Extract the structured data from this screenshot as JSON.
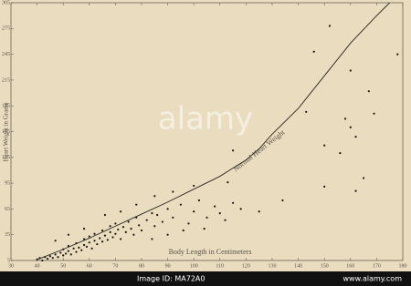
{
  "chart_data": {
    "type": "scatter",
    "y_label": "Heart Weight in Grams",
    "x_label": "Body Length in Centimeters",
    "annotation": "Normal Heart Weight",
    "xlim": [
      30,
      180
    ],
    "xticks": [
      30,
      40,
      50,
      60,
      70,
      80,
      90,
      100,
      110,
      120,
      130,
      140,
      150,
      160,
      170,
      180
    ],
    "ylim": [
      5,
      305
    ],
    "yticks": [
      5,
      35,
      65,
      95,
      125,
      155,
      185,
      215,
      245,
      275,
      305
    ],
    "series": [
      {
        "type": "scatter",
        "color": "#1a1712",
        "x": [
          40,
          41,
          42,
          43,
          44,
          45,
          46,
          47,
          48,
          49,
          50,
          50,
          51,
          52,
          52,
          53,
          54,
          55,
          55,
          56,
          57,
          58,
          58,
          59,
          60,
          60,
          61,
          62,
          62,
          63,
          64,
          65,
          65,
          66,
          67,
          68,
          68,
          69,
          70,
          70,
          71,
          72,
          73,
          74,
          75,
          76,
          77,
          78,
          79,
          80,
          82,
          84,
          85,
          86,
          88,
          90,
          92,
          95,
          98,
          100,
          102,
          105,
          108,
          110,
          112,
          115,
          118,
          125,
          47,
          52,
          58,
          66,
          72,
          78,
          85,
          92,
          100,
          84,
          90,
          96,
          104,
          113,
          115,
          143,
          146,
          150,
          150,
          152,
          158,
          160,
          162,
          162,
          165,
          167,
          169,
          178,
          134,
          156,
          160
        ],
        "values": [
          6,
          8,
          5,
          9,
          7,
          10,
          8,
          12,
          9,
          14,
          11,
          18,
          13,
          16,
          22,
          12,
          19,
          15,
          25,
          20,
          17,
          23,
          30,
          21,
          26,
          33,
          19,
          28,
          36,
          24,
          31,
          27,
          40,
          34,
          29,
          38,
          45,
          32,
          36,
          48,
          41,
          30,
          44,
          38,
          50,
          42,
          35,
          55,
          46,
          40,
          52,
          60,
          45,
          58,
          50,
          65,
          55,
          70,
          48,
          62,
          75,
          55,
          68,
          60,
          52,
          72,
          65,
          62,
          28,
          35,
          42,
          58,
          62,
          70,
          80,
          85,
          92,
          30,
          35,
          40,
          42,
          96,
          133,
          178,
          248,
          139,
          91,
          278,
          170,
          226,
          149,
          86,
          101,
          202,
          176,
          245,
          75,
          130,
          160
        ]
      },
      {
        "type": "line",
        "color": "#2a261f",
        "x": [
          40,
          50,
          60,
          70,
          80,
          90,
          100,
          110,
          120,
          125,
          130,
          140,
          150,
          160,
          170,
          175
        ],
        "values": [
          6,
          18,
          31,
          45,
          59,
          73,
          88,
          103,
          122,
          135,
          152,
          182,
          220,
          258,
          290,
          305
        ]
      }
    ]
  },
  "watermark": "alamy",
  "footer": {
    "image_id": "Image ID: MA72A0",
    "site": "www.alamy.com"
  }
}
